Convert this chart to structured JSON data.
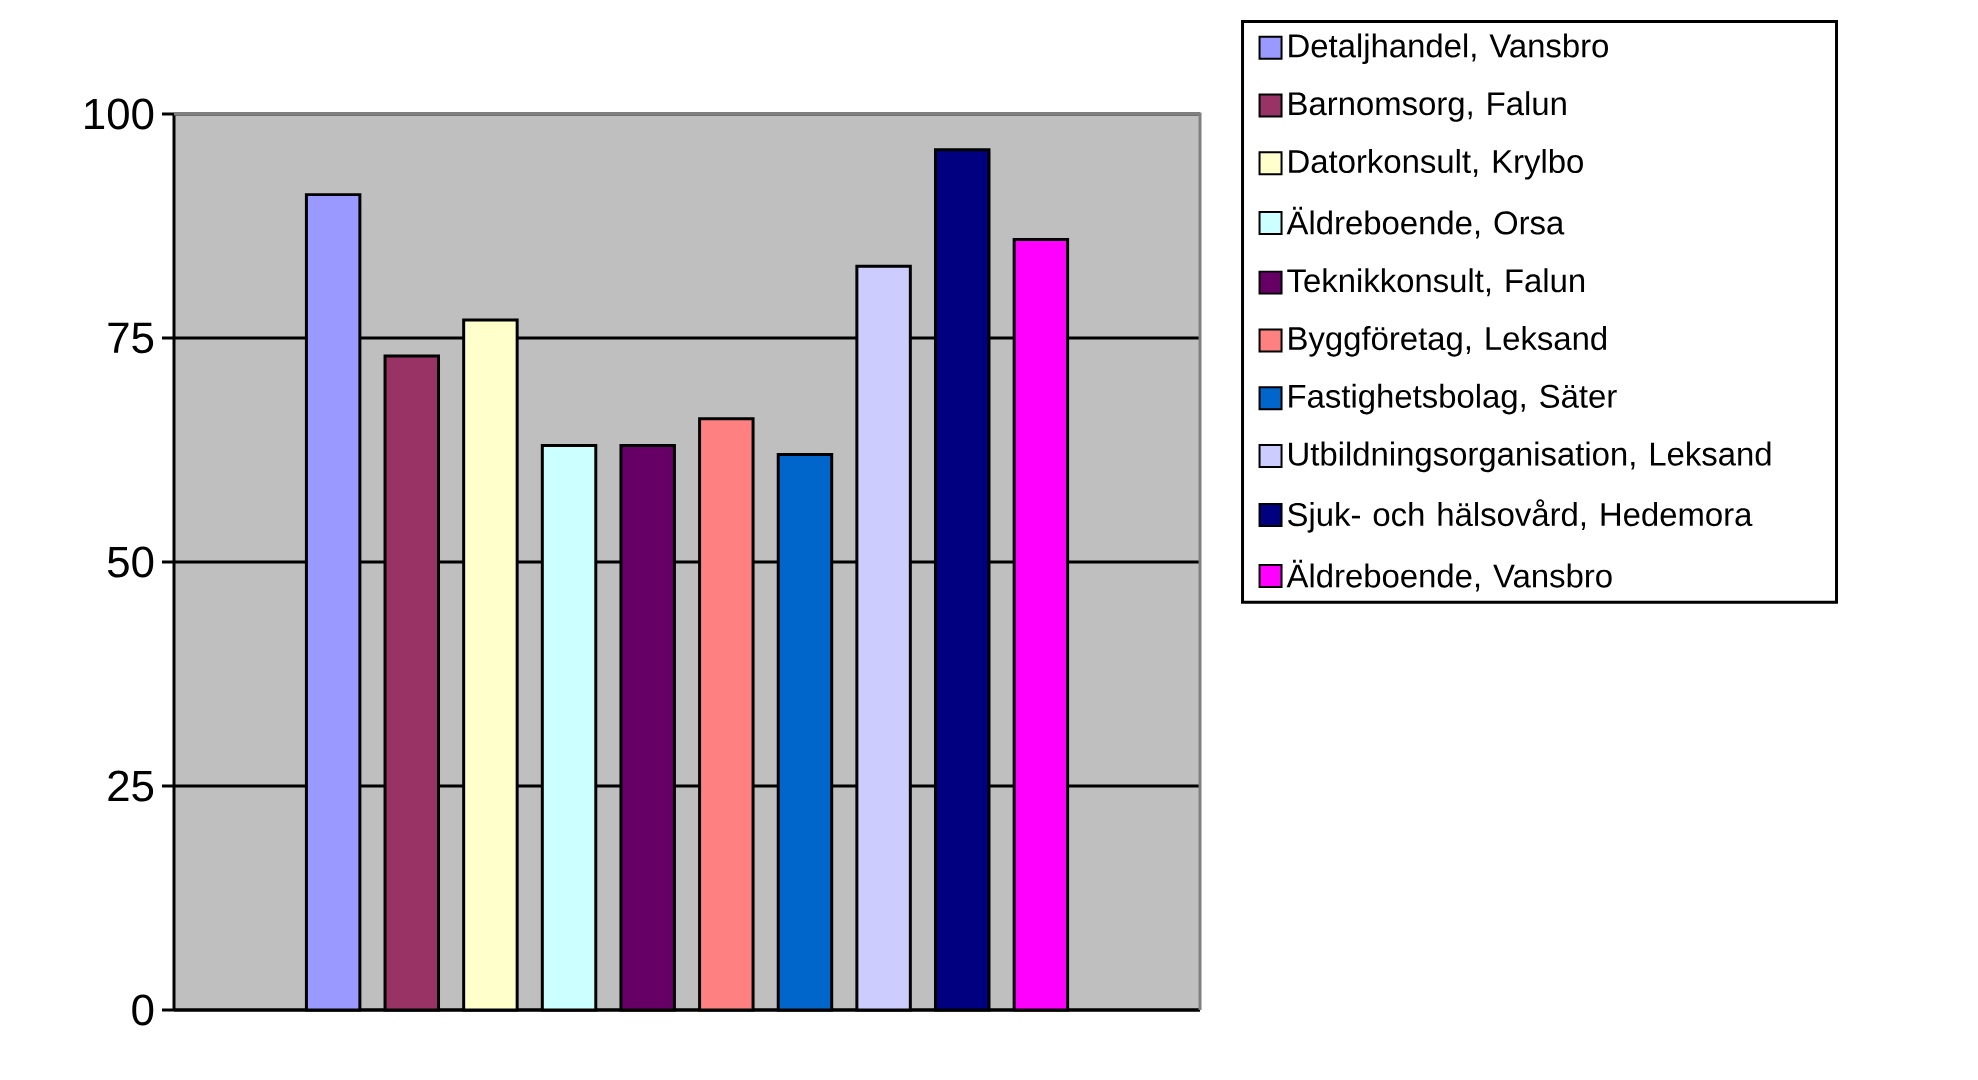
{
  "chart_data": {
    "type": "bar",
    "categories": [
      null
    ],
    "ylim": [
      0,
      100
    ],
    "yticks": [
      0,
      25,
      50,
      75,
      100
    ],
    "grid": "y",
    "legend": "right",
    "series": [
      {
        "name": "Detaljhandel, Vansbro",
        "color": "#9999ff",
        "values": [
          91
        ]
      },
      {
        "name": "Barnomsorg, Falun",
        "color": "#993366",
        "values": [
          73
        ]
      },
      {
        "name": "Datorkonsult, Krylbo",
        "color": "#ffffcc",
        "values": [
          77
        ]
      },
      {
        "name": "Äldreboende, Orsa",
        "color": "#ccffff",
        "values": [
          63
        ]
      },
      {
        "name": "Teknikkonsult, Falun",
        "color": "#660066",
        "values": [
          63
        ]
      },
      {
        "name": "Byggföretag, Leksand",
        "color": "#ff8080",
        "values": [
          66
        ]
      },
      {
        "name": "Fastighetsbolag, Säter",
        "color": "#0066cc",
        "values": [
          62
        ]
      },
      {
        "name": "Utbildningsorganisation, Leksand",
        "color": "#ccccff",
        "values": [
          83
        ]
      },
      {
        "name": "Sjuk- och hälsovård, Hedemora",
        "color": "#000080",
        "values": [
          96
        ]
      },
      {
        "name": "Äldreboende, Vansbro",
        "color": "#ff00ff",
        "values": [
          86
        ]
      }
    ]
  }
}
